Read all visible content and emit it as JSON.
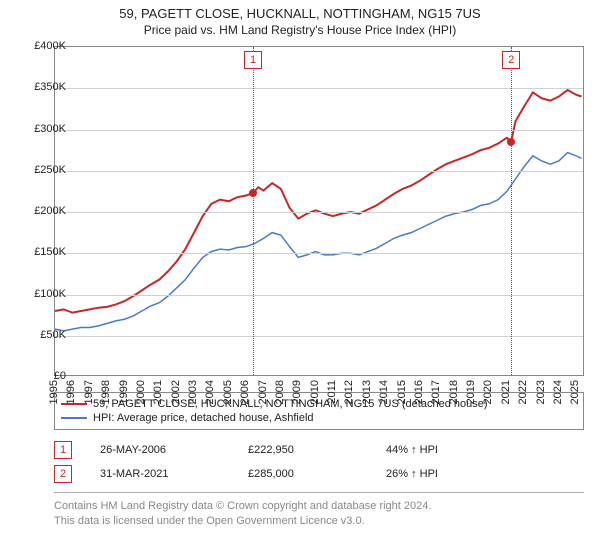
{
  "title": {
    "main": "59, PAGETT CLOSE, HUCKNALL, NOTTINGHAM, NG15 7US",
    "sub": "Price paid vs. HM Land Registry's House Price Index (HPI)",
    "fontsize_main": 13,
    "fontsize_sub": 12,
    "color": "#222222"
  },
  "chart": {
    "type": "line",
    "background_color": "#ffffff",
    "grid_color": "#d0d0d0",
    "axis_color": "#888888",
    "y": {
      "min": 0,
      "max": 400000,
      "tick_step": 50000,
      "ticks": [
        0,
        50000,
        100000,
        150000,
        200000,
        250000,
        300000,
        350000,
        400000
      ],
      "tick_labels": [
        "£0",
        "£50K",
        "£100K",
        "£150K",
        "£200K",
        "£250K",
        "£300K",
        "£350K",
        "£400K"
      ],
      "tick_fontsize": 11
    },
    "x": {
      "min": 1995,
      "max": 2025.5,
      "ticks": [
        1995,
        1996,
        1997,
        1998,
        1999,
        2000,
        2001,
        2002,
        2003,
        2004,
        2005,
        2006,
        2007,
        2008,
        2009,
        2010,
        2011,
        2012,
        2013,
        2014,
        2015,
        2016,
        2017,
        2018,
        2019,
        2020,
        2021,
        2022,
        2023,
        2024,
        2025
      ],
      "tick_fontsize": 11,
      "tick_rotation": -90
    },
    "series": [
      {
        "id": "property",
        "label": "59, PAGETT CLOSE, HUCKNALL, NOTTINGHAM, NG15 7US (detached house)",
        "color": "#c62828",
        "line_width": 2,
        "data": [
          [
            1995,
            80000
          ],
          [
            1995.5,
            82000
          ],
          [
            1996,
            78000
          ],
          [
            1996.5,
            80000
          ],
          [
            1997,
            82000
          ],
          [
            1997.5,
            84000
          ],
          [
            1998,
            85000
          ],
          [
            1998.5,
            88000
          ],
          [
            1999,
            92000
          ],
          [
            1999.5,
            98000
          ],
          [
            2000,
            105000
          ],
          [
            2000.5,
            112000
          ],
          [
            2001,
            118000
          ],
          [
            2001.5,
            128000
          ],
          [
            2002,
            140000
          ],
          [
            2002.5,
            155000
          ],
          [
            2003,
            175000
          ],
          [
            2003.5,
            195000
          ],
          [
            2004,
            210000
          ],
          [
            2004.5,
            215000
          ],
          [
            2005,
            213000
          ],
          [
            2005.5,
            218000
          ],
          [
            2006,
            220000
          ],
          [
            2006.4,
            222950
          ],
          [
            2006.7,
            230000
          ],
          [
            2007,
            226000
          ],
          [
            2007.5,
            235000
          ],
          [
            2008,
            228000
          ],
          [
            2008.5,
            205000
          ],
          [
            2009,
            192000
          ],
          [
            2009.5,
            198000
          ],
          [
            2010,
            202000
          ],
          [
            2010.5,
            198000
          ],
          [
            2011,
            195000
          ],
          [
            2011.5,
            198000
          ],
          [
            2012,
            200000
          ],
          [
            2012.5,
            198000
          ],
          [
            2013,
            203000
          ],
          [
            2013.5,
            208000
          ],
          [
            2014,
            215000
          ],
          [
            2014.5,
            222000
          ],
          [
            2015,
            228000
          ],
          [
            2015.5,
            232000
          ],
          [
            2016,
            238000
          ],
          [
            2016.5,
            245000
          ],
          [
            2017,
            252000
          ],
          [
            2017.5,
            258000
          ],
          [
            2018,
            262000
          ],
          [
            2018.5,
            266000
          ],
          [
            2019,
            270000
          ],
          [
            2019.5,
            275000
          ],
          [
            2020,
            278000
          ],
          [
            2020.5,
            283000
          ],
          [
            2021,
            290000
          ],
          [
            2021.25,
            285000
          ],
          [
            2021.5,
            310000
          ],
          [
            2022,
            328000
          ],
          [
            2022.5,
            345000
          ],
          [
            2023,
            338000
          ],
          [
            2023.5,
            335000
          ],
          [
            2024,
            340000
          ],
          [
            2024.5,
            348000
          ],
          [
            2025,
            342000
          ],
          [
            2025.3,
            340000
          ]
        ]
      },
      {
        "id": "hpi",
        "label": "HPI: Average price, detached house, Ashfield",
        "color": "#4a7bc8",
        "line_width": 1.5,
        "data": [
          [
            1995,
            58000
          ],
          [
            1995.5,
            56000
          ],
          [
            1996,
            58000
          ],
          [
            1996.5,
            60000
          ],
          [
            1997,
            60000
          ],
          [
            1997.5,
            62000
          ],
          [
            1998,
            65000
          ],
          [
            1998.5,
            68000
          ],
          [
            1999,
            70000
          ],
          [
            1999.5,
            74000
          ],
          [
            2000,
            80000
          ],
          [
            2000.5,
            86000
          ],
          [
            2001,
            90000
          ],
          [
            2001.5,
            98000
          ],
          [
            2002,
            108000
          ],
          [
            2002.5,
            118000
          ],
          [
            2003,
            132000
          ],
          [
            2003.5,
            145000
          ],
          [
            2004,
            152000
          ],
          [
            2004.5,
            155000
          ],
          [
            2005,
            154000
          ],
          [
            2005.5,
            157000
          ],
          [
            2006,
            158000
          ],
          [
            2006.5,
            162000
          ],
          [
            2007,
            168000
          ],
          [
            2007.5,
            175000
          ],
          [
            2008,
            172000
          ],
          [
            2008.5,
            158000
          ],
          [
            2009,
            145000
          ],
          [
            2009.5,
            148000
          ],
          [
            2010,
            152000
          ],
          [
            2010.5,
            148000
          ],
          [
            2011,
            148000
          ],
          [
            2011.5,
            150000
          ],
          [
            2012,
            150000
          ],
          [
            2012.5,
            148000
          ],
          [
            2013,
            152000
          ],
          [
            2013.5,
            156000
          ],
          [
            2014,
            162000
          ],
          [
            2014.5,
            168000
          ],
          [
            2015,
            172000
          ],
          [
            2015.5,
            175000
          ],
          [
            2016,
            180000
          ],
          [
            2016.5,
            185000
          ],
          [
            2017,
            190000
          ],
          [
            2017.5,
            195000
          ],
          [
            2018,
            198000
          ],
          [
            2018.5,
            200000
          ],
          [
            2019,
            203000
          ],
          [
            2019.5,
            208000
          ],
          [
            2020,
            210000
          ],
          [
            2020.5,
            215000
          ],
          [
            2021,
            225000
          ],
          [
            2021.5,
            240000
          ],
          [
            2022,
            255000
          ],
          [
            2022.5,
            268000
          ],
          [
            2023,
            262000
          ],
          [
            2023.5,
            258000
          ],
          [
            2024,
            262000
          ],
          [
            2024.5,
            272000
          ],
          [
            2025,
            268000
          ],
          [
            2025.3,
            265000
          ]
        ]
      }
    ],
    "markers": [
      {
        "n": "1",
        "year": 2006.4,
        "price_y": 222950,
        "dot_color": "#c62828"
      },
      {
        "n": "2",
        "year": 2021.25,
        "price_y": 285000,
        "dot_color": "#c62828"
      }
    ]
  },
  "legend": {
    "border_color": "#888888",
    "fontsize": 11,
    "items": [
      {
        "color": "#c62828",
        "label": "59, PAGETT CLOSE, HUCKNALL, NOTTINGHAM, NG15 7US (detached house)"
      },
      {
        "color": "#4a7bc8",
        "label": "HPI: Average price, detached house, Ashfield"
      }
    ]
  },
  "sales_table": {
    "fontsize": 11,
    "rows": [
      {
        "n": "1",
        "date": "26-MAY-2006",
        "price": "£222,950",
        "pct": "44% ↑ HPI"
      },
      {
        "n": "2",
        "date": "31-MAR-2021",
        "price": "£285,000",
        "pct": "26% ↑ HPI"
      }
    ]
  },
  "footer": {
    "line1": "Contains HM Land Registry data © Crown copyright and database right 2024.",
    "line2": "This data is licensed under the Open Government Licence v3.0.",
    "fontsize": 11,
    "color": "#888888"
  }
}
